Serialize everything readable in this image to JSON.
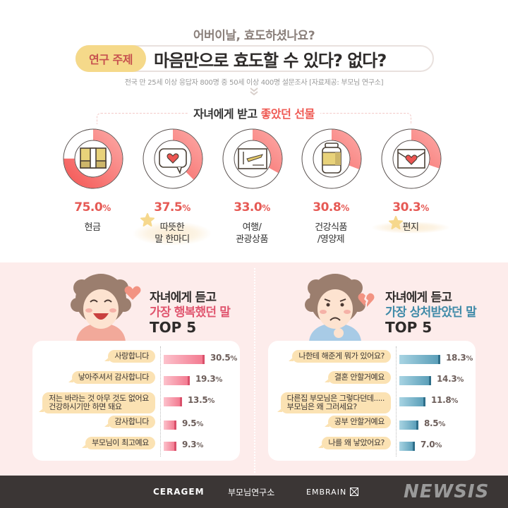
{
  "header": {
    "question": "어버이날, 효도하셨나요?",
    "topic_badge": "연구 주제",
    "main_title": "마음만으로 효도할 수 있다? 없다?",
    "survey_note": "전국 만 25세 이상 응답자 800명 중 50세 이상 400명 설문조사 [자료제공: 부모님 연구소]",
    "chevron_icon": "double-chevron-down-icon"
  },
  "gifts": {
    "title_plain": "자녀에게 받고 ",
    "title_highlight": "좋았던 선물",
    "items": [
      {
        "label": "현금",
        "value": "75.0",
        "unit": "%",
        "icon": "cash-bundle-icon",
        "starred": false
      },
      {
        "label": "따뜻한\n말 한마디",
        "value": "37.5",
        "unit": "%",
        "icon": "heart-speech-bubble-icon",
        "starred": true
      },
      {
        "label": "여행/\n관광상품",
        "value": "33.0",
        "unit": "%",
        "icon": "airplane-ticket-icon",
        "starred": false
      },
      {
        "label": "건강식품\n/영양제",
        "value": "30.8",
        "unit": "%",
        "icon": "supplement-jar-icon",
        "starred": false
      },
      {
        "label": "편지",
        "value": "30.3",
        "unit": "%",
        "icon": "heart-envelope-icon",
        "starred": true
      }
    ]
  },
  "happy": {
    "title_line1": "자녀에게 듣고",
    "title_line2": "가장 행복했던 말",
    "title_line3": "TOP 5",
    "icon": "heart-icon",
    "rows": [
      {
        "label": "사랑합니다",
        "value": "30.5",
        "unit": "%"
      },
      {
        "label": "낳아주셔서 감사합니다",
        "value": "19.3",
        "unit": "%"
      },
      {
        "label": "저는 바라는 것 아무 것도 없어요\n건강하시기만 하면 돼요",
        "value": "13.5",
        "unit": "%"
      },
      {
        "label": "감사합니다",
        "value": "9.5",
        "unit": "%"
      },
      {
        "label": "부모님이 최고예요",
        "value": "9.3",
        "unit": "%"
      }
    ]
  },
  "hurt": {
    "title_line1": "자녀에게 듣고",
    "title_line2": "가장 상처받았던 말",
    "title_line3": "TOP 5",
    "icon": "broken-heart-icon",
    "rows": [
      {
        "label": "나한테 해준게 뭐가 있어요?",
        "value": "18.3",
        "unit": "%"
      },
      {
        "label": "결혼 안할거예요",
        "value": "14.3",
        "unit": "%"
      },
      {
        "label": "다른집 부모님은 그렇다던데.....\n부모님은 왜 그러세요?",
        "value": "11.8",
        "unit": "%"
      },
      {
        "label": "공부 안할거예요",
        "value": "8.5",
        "unit": "%"
      },
      {
        "label": "나를 왜 낳았어요?",
        "value": "7.0",
        "unit": "%"
      }
    ]
  },
  "footer": {
    "logo1": "CERAGEM",
    "logo2": "부모님연구소",
    "logo3": "EMBRAIN",
    "watermark": "NEWSIS"
  },
  "colors": {
    "accent_red": "#e65a55",
    "donut_fill": "#f56b68",
    "bar_pink": "#f37b91",
    "bar_blue": "#5b9fb9",
    "bubble": "#fbe2b3",
    "pink_bg": "#fdeceb",
    "footer_bg": "#3b3635"
  },
  "chart_data": [
    {
      "type": "pie",
      "title": "자녀에게 받고 좋았던 선물",
      "categories": [
        "현금",
        "따뜻한 말 한마디",
        "여행/관광상품",
        "건강식품/영양제",
        "편지"
      ],
      "values": [
        75.0,
        37.5,
        33.0,
        30.8,
        30.3
      ],
      "unit": "%",
      "style": "individual donut gauges"
    },
    {
      "type": "bar",
      "orientation": "horizontal",
      "title": "자녀에게 듣고 가장 행복했던 말 TOP 5",
      "categories": [
        "사랑합니다",
        "낳아주셔서 감사합니다",
        "저는 바라는 것 아무 것도 없어요 건강하시기만 하면 돼요",
        "감사합니다",
        "부모님이 최고예요"
      ],
      "values": [
        30.5,
        19.3,
        13.5,
        9.5,
        9.3
      ],
      "unit": "%"
    },
    {
      "type": "bar",
      "orientation": "horizontal",
      "title": "자녀에게 듣고 가장 상처받았던 말 TOP 5",
      "categories": [
        "나한테 해준게 뭐가 있어요?",
        "결혼 안할거예요",
        "다른집 부모님은 그렇다던데..... 부모님은 왜 그러세요?",
        "공부 안할거예요",
        "나를 왜 낳았어요?"
      ],
      "values": [
        18.3,
        14.3,
        11.8,
        8.5,
        7.0
      ],
      "unit": "%"
    }
  ]
}
